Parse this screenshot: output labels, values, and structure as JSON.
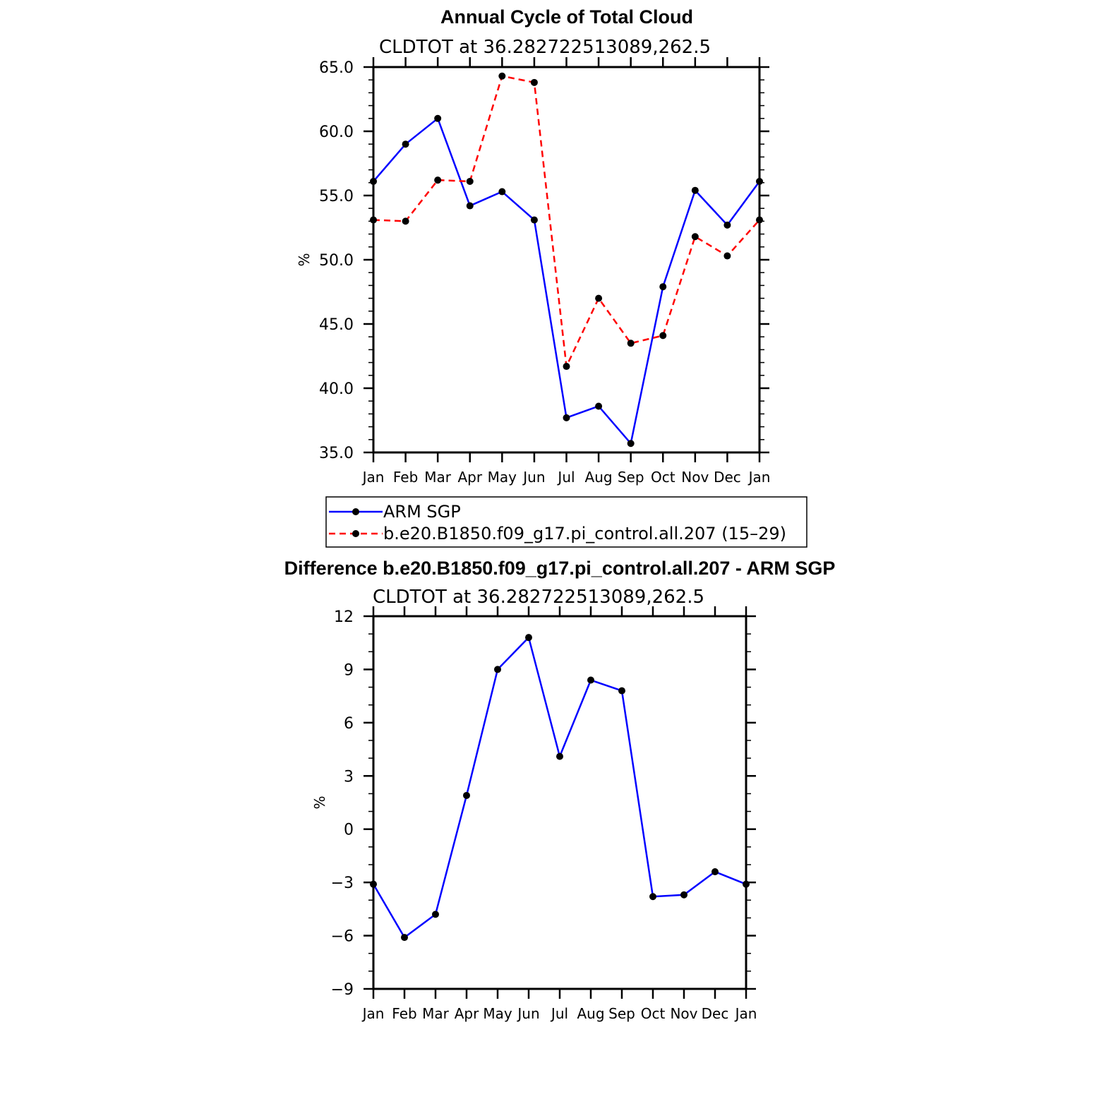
{
  "chart_data": [
    {
      "type": "line",
      "title": "Annual Cycle of Total Cloud",
      "subtitle": "CLDTOT at 36.282722513089,262.5",
      "ylabel": "%",
      "xlabel": "",
      "ylim": [
        35,
        65
      ],
      "yticks": [
        35,
        40,
        45,
        50,
        55,
        60,
        65
      ],
      "ytick_labels": [
        "35.0",
        "40.0",
        "45.0",
        "50.0",
        "55.0",
        "60.0",
        "65.0"
      ],
      "categories": [
        "Jan",
        "Feb",
        "Mar",
        "Apr",
        "May",
        "Jun",
        "Jul",
        "Aug",
        "Sep",
        "Oct",
        "Nov",
        "Dec",
        "Jan"
      ],
      "series": [
        {
          "name": "ARM SGP",
          "color": "#0000ff",
          "dash": "solid",
          "values": [
            56.1,
            59.0,
            61.0,
            54.2,
            55.3,
            53.1,
            37.7,
            38.6,
            35.7,
            47.9,
            55.4,
            52.7,
            56.1
          ]
        },
        {
          "name": "b.e20.B1850.f09_g17.pi_control.all.207 (15–29)",
          "color": "#ff0000",
          "dash": "dashed",
          "values": [
            53.1,
            53.0,
            56.2,
            56.1,
            64.3,
            63.8,
            41.7,
            47.0,
            43.5,
            44.1,
            51.8,
            50.3,
            53.1
          ]
        }
      ]
    },
    {
      "type": "line",
      "title": "Difference b.e20.B1850.f09_g17.pi_control.all.207 - ARM SGP",
      "subtitle": "CLDTOT at 36.282722513089,262.5",
      "ylabel": "%",
      "xlabel": "",
      "ylim": [
        -9,
        12
      ],
      "yticks": [
        -9,
        -6,
        -3,
        0,
        3,
        6,
        9,
        12
      ],
      "ytick_labels": [
        "−9",
        "−6",
        "−3",
        "0",
        "3",
        "6",
        "9",
        "12"
      ],
      "categories": [
        "Jan",
        "Feb",
        "Mar",
        "Apr",
        "May",
        "Jun",
        "Jul",
        "Aug",
        "Sep",
        "Oct",
        "Nov",
        "Dec",
        "Jan"
      ],
      "series": [
        {
          "name": "difference",
          "color": "#0000ff",
          "dash": "solid",
          "values": [
            -3.1,
            -6.1,
            -4.8,
            1.9,
            9.0,
            10.8,
            4.1,
            8.4,
            7.8,
            -3.8,
            -3.7,
            -2.4,
            -3.1
          ]
        }
      ]
    }
  ]
}
